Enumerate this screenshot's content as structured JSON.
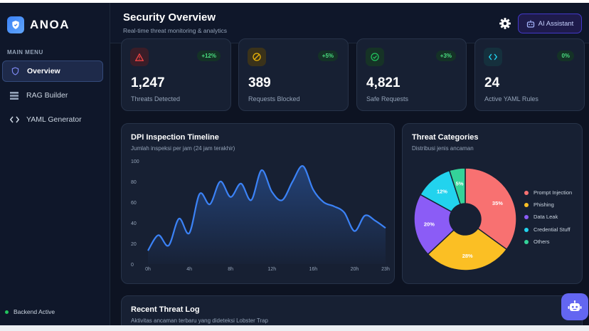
{
  "app": {
    "name": "ANOA"
  },
  "sidebar": {
    "menu_label": "MAIN MENU",
    "items": [
      {
        "label": "Overview",
        "icon": "shield-icon",
        "active": true
      },
      {
        "label": "RAG Builder",
        "icon": "database-icon",
        "active": false
      },
      {
        "label": "YAML Generator",
        "icon": "code-icon",
        "active": false
      }
    ],
    "status": "Backend Active"
  },
  "header": {
    "title": "Security Overview",
    "subtitle": "Real-time threat monitoring & analytics",
    "assistant_label": "AI Assistant"
  },
  "stats": [
    {
      "value": "1,247",
      "label": "Threats Detected",
      "delta": "+12%",
      "icon": "warning-icon",
      "color": "#ef4444"
    },
    {
      "value": "389",
      "label": "Requests Blocked",
      "delta": "+5%",
      "icon": "blocked-icon",
      "color": "#eab308"
    },
    {
      "value": "4,821",
      "label": "Safe Requests",
      "delta": "+3%",
      "icon": "check-circle-icon",
      "color": "#22c55e"
    },
    {
      "value": "24",
      "label": "Active YAML Rules",
      "delta": "0%",
      "icon": "code-icon",
      "color": "#22d3ee"
    }
  ],
  "timeline": {
    "title": "DPI Inspection Timeline",
    "subtitle": "Jumlah inspeksi per jam (24 jam terakhir)"
  },
  "categories": {
    "title": "Threat Categories",
    "subtitle": "Distribusi jenis ancaman"
  },
  "log": {
    "title": "Recent Threat Log",
    "subtitle": "Aktivitas ancaman terbaru yang dideteksi Lobster Trap"
  },
  "chart_data": [
    {
      "type": "area",
      "x": [
        "0h",
        "1h",
        "2h",
        "3h",
        "4h",
        "5h",
        "6h",
        "7h",
        "8h",
        "9h",
        "10h",
        "11h",
        "12h",
        "13h",
        "14h",
        "15h",
        "16h",
        "17h",
        "18h",
        "19h",
        "20h",
        "21h",
        "22h",
        "23h"
      ],
      "values": [
        13,
        28,
        18,
        44,
        30,
        68,
        58,
        80,
        65,
        78,
        62,
        91,
        70,
        62,
        80,
        95,
        72,
        60,
        56,
        50,
        32,
        47,
        42,
        35
      ],
      "xticks": [
        "0h",
        "4h",
        "8h",
        "12h",
        "16h",
        "20h",
        "23h"
      ],
      "yticks": [
        "0",
        "20",
        "40",
        "60",
        "80",
        "100"
      ],
      "ylim": [
        0,
        100
      ],
      "line_color": "#3b82f6"
    },
    {
      "type": "pie",
      "slices": [
        {
          "name": "Prompt Injection",
          "value": 35,
          "color": "#f87171"
        },
        {
          "name": "Phishing",
          "value": 28,
          "color": "#fbbf24"
        },
        {
          "name": "Data Leak",
          "value": 20,
          "color": "#8b5cf6"
        },
        {
          "name": "Credential Stuff",
          "value": 12,
          "color": "#22d3ee"
        },
        {
          "name": "Others",
          "value": 5,
          "color": "#34d399"
        }
      ]
    }
  ]
}
